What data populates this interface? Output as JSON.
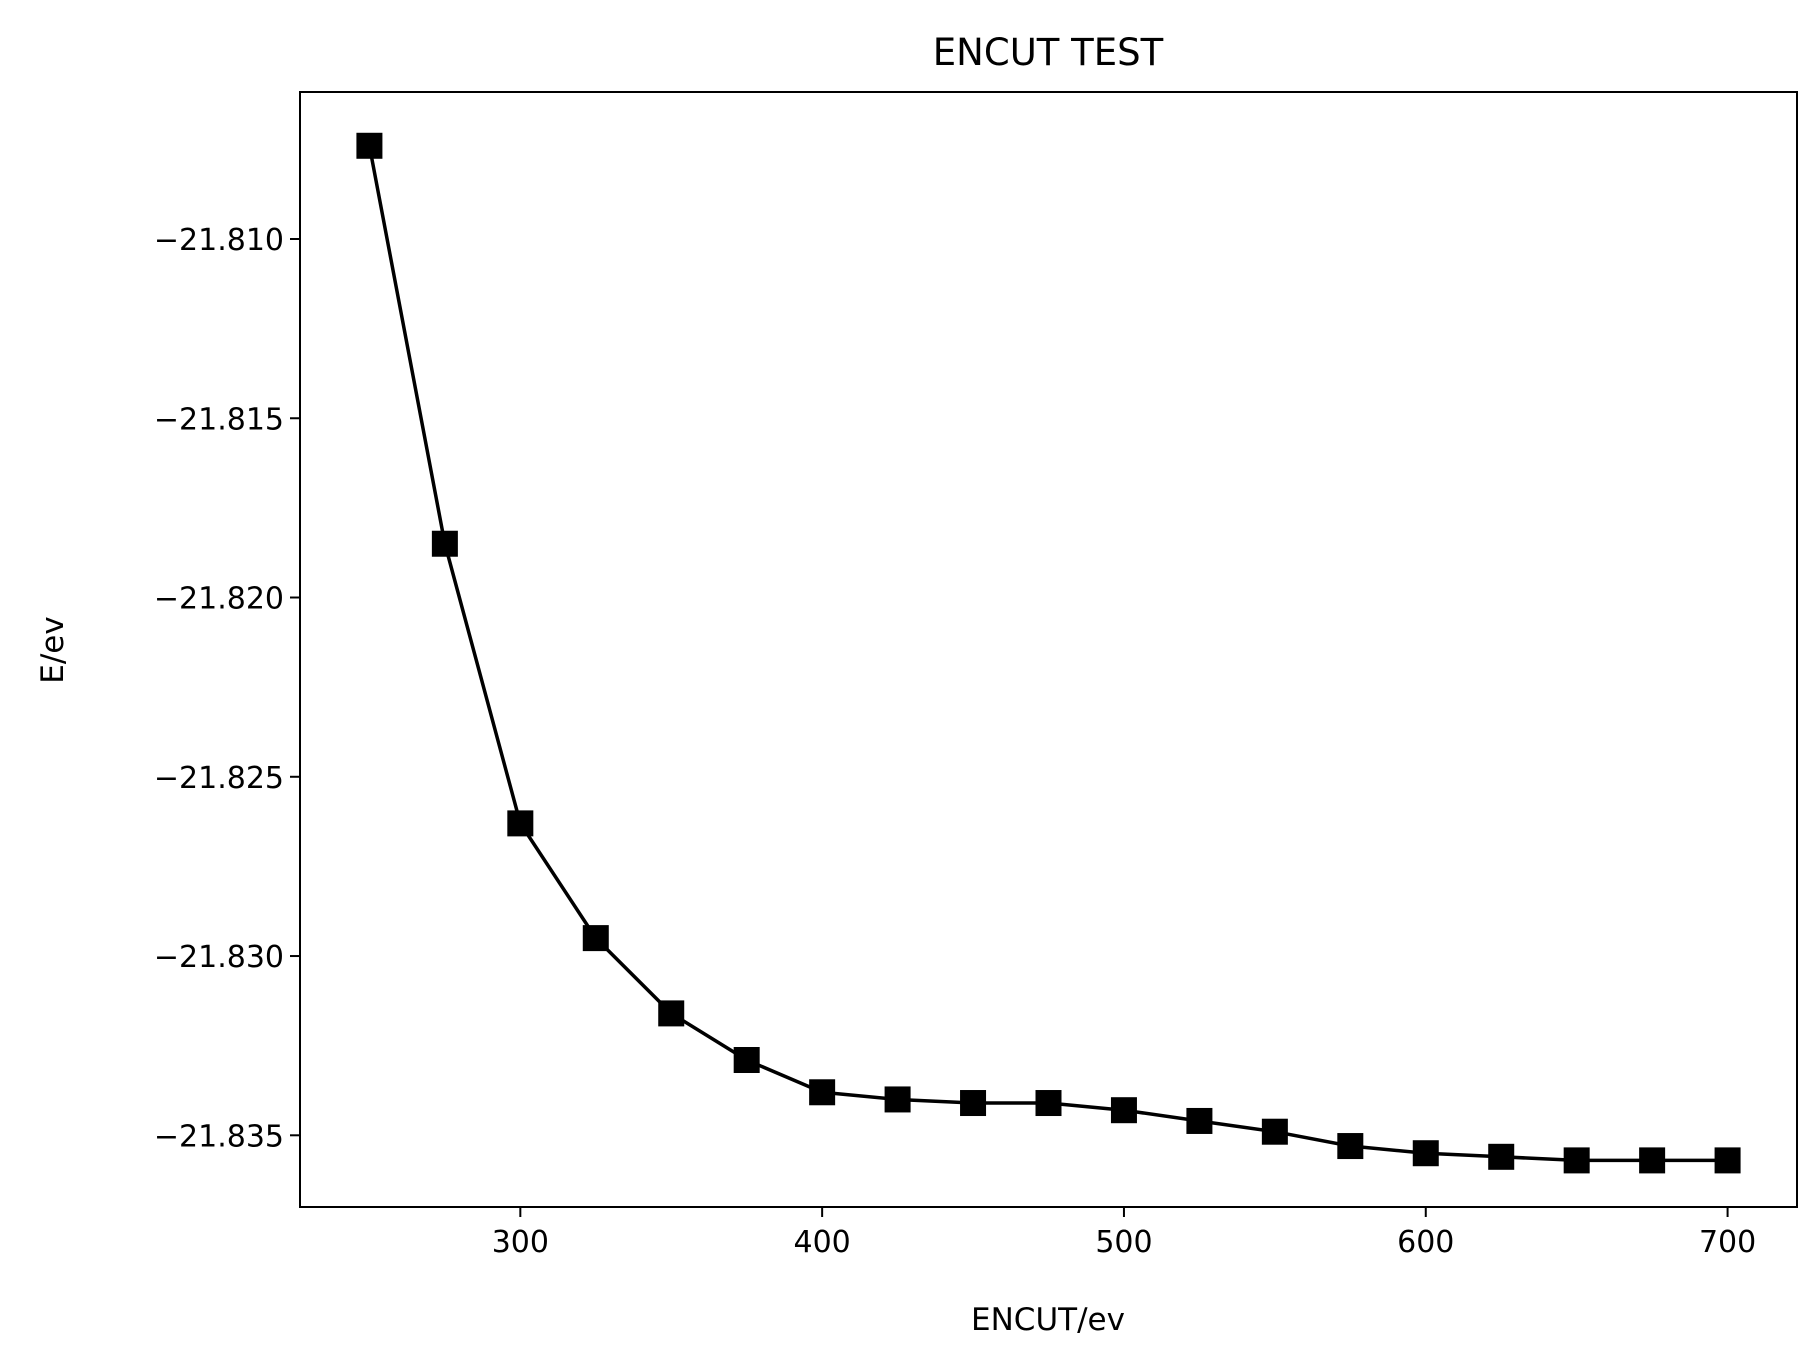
{
  "chart_data": {
    "type": "line",
    "title": "ENCUT TEST",
    "xlabel": "ENCUT/ev",
    "ylabel": "E/ev",
    "xlim": [
      227,
      723
    ],
    "ylim": [
      -21.837,
      -21.8059
    ],
    "xticks": [
      {
        "value": 300,
        "label": "300"
      },
      {
        "value": 400,
        "label": "400"
      },
      {
        "value": 500,
        "label": "500"
      },
      {
        "value": 600,
        "label": "600"
      },
      {
        "value": 700,
        "label": "700"
      }
    ],
    "yticks": [
      {
        "value": -21.81,
        "label": "−21.810"
      },
      {
        "value": -21.815,
        "label": "−21.815"
      },
      {
        "value": -21.82,
        "label": "−21.820"
      },
      {
        "value": -21.825,
        "label": "−21.825"
      },
      {
        "value": -21.83,
        "label": "−21.830"
      },
      {
        "value": -21.835,
        "label": "−21.835"
      }
    ],
    "grid": false,
    "legend": "none",
    "marker": "square",
    "series": [
      {
        "color": "#000000",
        "x": [
          250,
          275,
          300,
          325,
          350,
          375,
          400,
          425,
          450,
          475,
          500,
          525,
          550,
          575,
          600,
          625,
          650,
          675,
          700
        ],
        "y": [
          -21.8074,
          -21.8185,
          -21.8263,
          -21.8295,
          -21.8316,
          -21.8329,
          -21.8338,
          -21.834,
          -21.8341,
          -21.8341,
          -21.8343,
          -21.8346,
          -21.8349,
          -21.8353,
          -21.8355,
          -21.8356,
          -21.8357,
          -21.8357,
          -21.8357
        ]
      }
    ]
  }
}
